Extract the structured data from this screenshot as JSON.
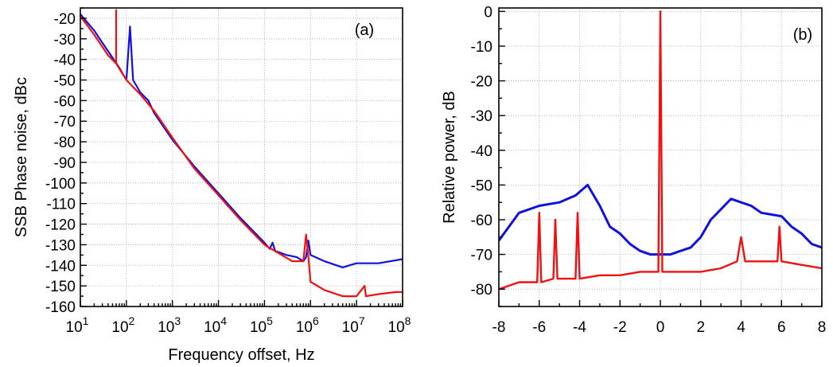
{
  "chart_data": [
    {
      "type": "line",
      "panel_label": "(a)",
      "xlabel": "Frequency offset, Hz",
      "ylabel": "SSB Phase noise, dBc",
      "xscale": "log",
      "xlim": [
        10,
        100000000
      ],
      "ylim": [
        -160,
        -15
      ],
      "grid": true,
      "x_ticks": [
        {
          "value": 10,
          "base": "10",
          "exp": "1"
        },
        {
          "value": 100,
          "base": "10",
          "exp": "2"
        },
        {
          "value": 1000,
          "base": "10",
          "exp": "3"
        },
        {
          "value": 10000,
          "base": "10",
          "exp": "4"
        },
        {
          "value": 100000,
          "base": "10",
          "exp": "5"
        },
        {
          "value": 1000000,
          "base": "10",
          "exp": "6"
        },
        {
          "value": 10000000,
          "base": "10",
          "exp": "7"
        },
        {
          "value": 100000000,
          "base": "10",
          "exp": "8"
        }
      ],
      "y_ticks": [
        "-20",
        "-30",
        "-40",
        "-50",
        "-60",
        "-70",
        "-80",
        "-90",
        "-100",
        "-110",
        "-120",
        "-130",
        "-140",
        "-150",
        "-160"
      ],
      "series": [
        {
          "color": "#1010e0",
          "points": [
            [
              10,
              -18
            ],
            [
              20,
              -26
            ],
            [
              40,
              -36
            ],
            [
              70,
              -44
            ],
            [
              100,
              -50
            ],
            [
              120,
              -24
            ],
            [
              140,
              -50
            ],
            [
              200,
              -56
            ],
            [
              300,
              -60
            ],
            [
              400,
              -66
            ],
            [
              1000,
              -79
            ],
            [
              3000,
              -92
            ],
            [
              10000,
              -105
            ],
            [
              30000,
              -117
            ],
            [
              100000,
              -129
            ],
            [
              130000,
              -132
            ],
            [
              150000,
              -129
            ],
            [
              170000,
              -133
            ],
            [
              300000,
              -135
            ],
            [
              500000,
              -136
            ],
            [
              700000,
              -138
            ],
            [
              800000,
              -136
            ],
            [
              900000,
              -128
            ],
            [
              1000000,
              -135
            ],
            [
              2000000,
              -138
            ],
            [
              5000000,
              -141
            ],
            [
              7000000,
              -140
            ],
            [
              10000000,
              -139
            ],
            [
              30000000,
              -139
            ],
            [
              100000000,
              -137
            ]
          ]
        },
        {
          "color": "#f01010",
          "points": [
            [
              10,
              -19
            ],
            [
              20,
              -28
            ],
            [
              40,
              -38
            ],
            [
              60,
              -42
            ],
            [
              60,
              -16
            ],
            [
              60,
              -42
            ],
            [
              100,
              -50
            ],
            [
              200,
              -57
            ],
            [
              400,
              -65
            ],
            [
              1000,
              -78
            ],
            [
              3000,
              -93
            ],
            [
              10000,
              -106
            ],
            [
              30000,
              -118
            ],
            [
              100000,
              -130
            ],
            [
              200000,
              -134
            ],
            [
              400000,
              -138
            ],
            [
              700000,
              -138
            ],
            [
              800000,
              -125
            ],
            [
              900000,
              -136
            ],
            [
              1000000,
              -148
            ],
            [
              2000000,
              -152
            ],
            [
              5000000,
              -155
            ],
            [
              10000000,
              -155
            ],
            [
              15000000,
              -150
            ],
            [
              16000000,
              -155
            ],
            [
              30000000,
              -154
            ],
            [
              70000000,
              -153
            ],
            [
              100000000,
              -153
            ]
          ]
        }
      ]
    },
    {
      "type": "line",
      "panel_label": "(b)",
      "xlabel": "",
      "ylabel": "Relative power, dB",
      "xlim": [
        -8,
        8
      ],
      "ylim": [
        -85,
        1
      ],
      "grid": true,
      "x_ticks": [
        "-8",
        "-6",
        "-4",
        "-2",
        "0",
        "2",
        "4",
        "6",
        "8"
      ],
      "y_ticks": [
        "0",
        "-10",
        "-20",
        "-30",
        "-40",
        "-50",
        "-60",
        "-70",
        "-80"
      ],
      "series": [
        {
          "color": "#1010e0",
          "points": [
            [
              -8,
              -66
            ],
            [
              -7.5,
              -62
            ],
            [
              -7,
              -58
            ],
            [
              -6,
              -56
            ],
            [
              -5,
              -55
            ],
            [
              -4.2,
              -53
            ],
            [
              -3.6,
              -50
            ],
            [
              -3,
              -56
            ],
            [
              -2.5,
              -62
            ],
            [
              -2,
              -64
            ],
            [
              -1.5,
              -67
            ],
            [
              -1,
              -69
            ],
            [
              -0.5,
              -70
            ],
            [
              0,
              -70
            ],
            [
              0.5,
              -70
            ],
            [
              1,
              -69
            ],
            [
              1.5,
              -68
            ],
            [
              2,
              -65
            ],
            [
              2.5,
              -60
            ],
            [
              3,
              -57
            ],
            [
              3.5,
              -54
            ],
            [
              4,
              -55
            ],
            [
              4.5,
              -56
            ],
            [
              5,
              -58
            ],
            [
              6,
              -59
            ],
            [
              6.5,
              -62
            ],
            [
              7,
              -64
            ],
            [
              7.5,
              -67
            ],
            [
              8,
              -68
            ]
          ]
        },
        {
          "color": "#f01010",
          "points": [
            [
              -8,
              -80
            ],
            [
              -7,
              -78
            ],
            [
              -6.1,
              -78
            ],
            [
              -6,
              -58
            ],
            [
              -5.9,
              -78
            ],
            [
              -5.3,
              -77
            ],
            [
              -5.2,
              -60
            ],
            [
              -5.1,
              -77
            ],
            [
              -4.2,
              -77
            ],
            [
              -4.1,
              -58
            ],
            [
              -4.0,
              -77
            ],
            [
              -3,
              -76
            ],
            [
              -2,
              -76
            ],
            [
              -1,
              -75
            ],
            [
              -0.1,
              -75
            ],
            [
              0,
              0
            ],
            [
              0.1,
              -75
            ],
            [
              1,
              -75
            ],
            [
              2,
              -75
            ],
            [
              3,
              -74
            ],
            [
              3.8,
              -72
            ],
            [
              4,
              -65
            ],
            [
              4.2,
              -72
            ],
            [
              5,
              -72
            ],
            [
              5.8,
              -72
            ],
            [
              5.9,
              -62
            ],
            [
              6,
              -72
            ],
            [
              7,
              -73
            ],
            [
              8,
              -74
            ]
          ]
        }
      ]
    }
  ]
}
